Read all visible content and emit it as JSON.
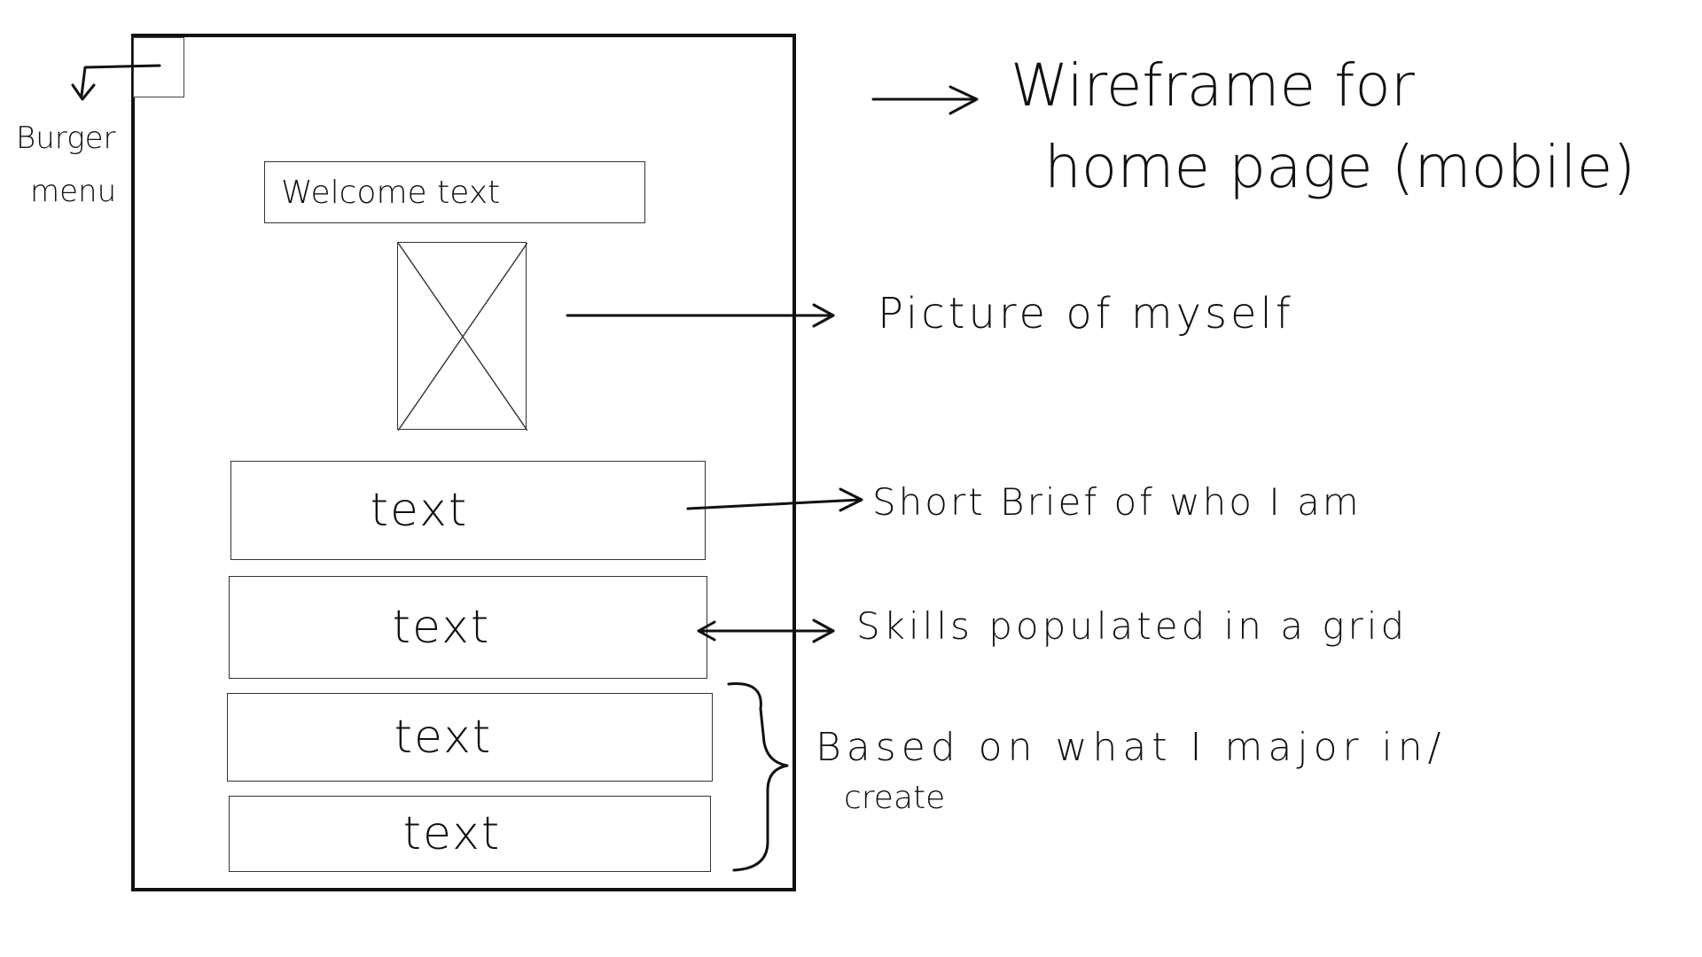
{
  "title": {
    "line1": "Wireframe for",
    "line2": "home page (mobile)"
  },
  "burger_annotation": {
    "line1": "Burger",
    "line2": "menu"
  },
  "wireframe": {
    "welcome_label": "Welcome text",
    "text_boxes": [
      "text",
      "text",
      "text",
      "text"
    ]
  },
  "annotations": {
    "picture": "Picture of myself",
    "brief": "Short Brief of who I am",
    "skills": "Skills populated in a grid",
    "major_line1": "Based on what I major in/",
    "major_line2": "create"
  },
  "colors": {
    "ink": "#111111",
    "paper": "#ffffff"
  }
}
